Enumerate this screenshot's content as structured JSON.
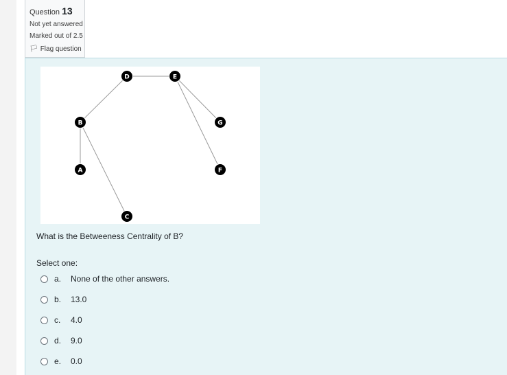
{
  "question": {
    "label": "Question",
    "number": "13",
    "status": "Not yet answered",
    "marks": "Marked out of 2.5",
    "flag_label": "Flag question"
  },
  "graph": {
    "nodes": [
      {
        "id": "D",
        "label": "D"
      },
      {
        "id": "E",
        "label": "E"
      },
      {
        "id": "B",
        "label": "B"
      },
      {
        "id": "G",
        "label": "G"
      },
      {
        "id": "A",
        "label": "A"
      },
      {
        "id": "F",
        "label": "F"
      },
      {
        "id": "C",
        "label": "C"
      }
    ],
    "edges": [
      [
        "D",
        "E"
      ],
      [
        "D",
        "B"
      ],
      [
        "B",
        "A"
      ],
      [
        "B",
        "C"
      ],
      [
        "E",
        "G"
      ],
      [
        "E",
        "F"
      ]
    ]
  },
  "question_text": "What is the Betweeness Centrality of B?",
  "select_one": "Select one:",
  "options": [
    {
      "letter": "a.",
      "text": "None of the other answers."
    },
    {
      "letter": "b.",
      "text": "13.0"
    },
    {
      "letter": "c.",
      "text": "4.0"
    },
    {
      "letter": "d.",
      "text": "9.0"
    },
    {
      "letter": "e.",
      "text": "0.0"
    }
  ]
}
